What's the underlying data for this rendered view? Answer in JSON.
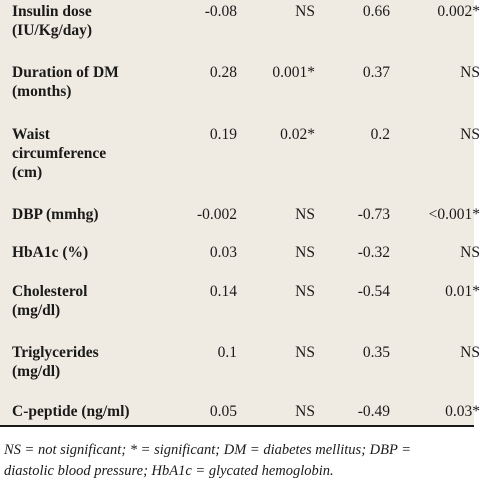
{
  "table": {
    "rows": [
      {
        "label": [
          "Insulin dose",
          "(IU/Kg/day)"
        ],
        "r1": "-0.08",
        "p1": "NS",
        "r2": "0.66",
        "p2": "0.002*"
      },
      {
        "label": [
          "Duration of DM",
          "(months)"
        ],
        "r1": "0.28",
        "p1": "0.001*",
        "r2": "0.37",
        "p2": "NS"
      },
      {
        "label": [
          "Waist",
          "circumference",
          "(cm)"
        ],
        "r1": "0.19",
        "p1": "0.02*",
        "r2": "0.2",
        "p2": "NS"
      },
      {
        "label": [
          "DBP (mmhg)"
        ],
        "r1": "-0.002",
        "p1": "NS",
        "r2": "-0.73",
        "p2": "<0.001*"
      },
      {
        "label": [
          "HbA1c (%)"
        ],
        "r1": "0.03",
        "p1": "NS",
        "r2": "-0.32",
        "p2": "NS"
      },
      {
        "label": [
          "Cholesterol",
          "(mg/dl)"
        ],
        "r1": "0.14",
        "p1": "NS",
        "r2": "-0.54",
        "p2": "0.01*"
      },
      {
        "label": [
          "Triglycerides",
          "(mg/dl)"
        ],
        "r1": "0.1",
        "p1": "NS",
        "r2": "0.35",
        "p2": "NS"
      },
      {
        "label": [
          "C-peptide (ng/ml)"
        ],
        "r1": "0.05",
        "p1": "NS",
        "r2": "-0.49",
        "p2": "0.03*"
      }
    ]
  },
  "footnote": {
    "line1": "NS = not significant; * = significant; DM = diabetes mellitus; DBP =",
    "line2": "diastolic blood pressure; HbA1c = glycated hemoglobin."
  }
}
